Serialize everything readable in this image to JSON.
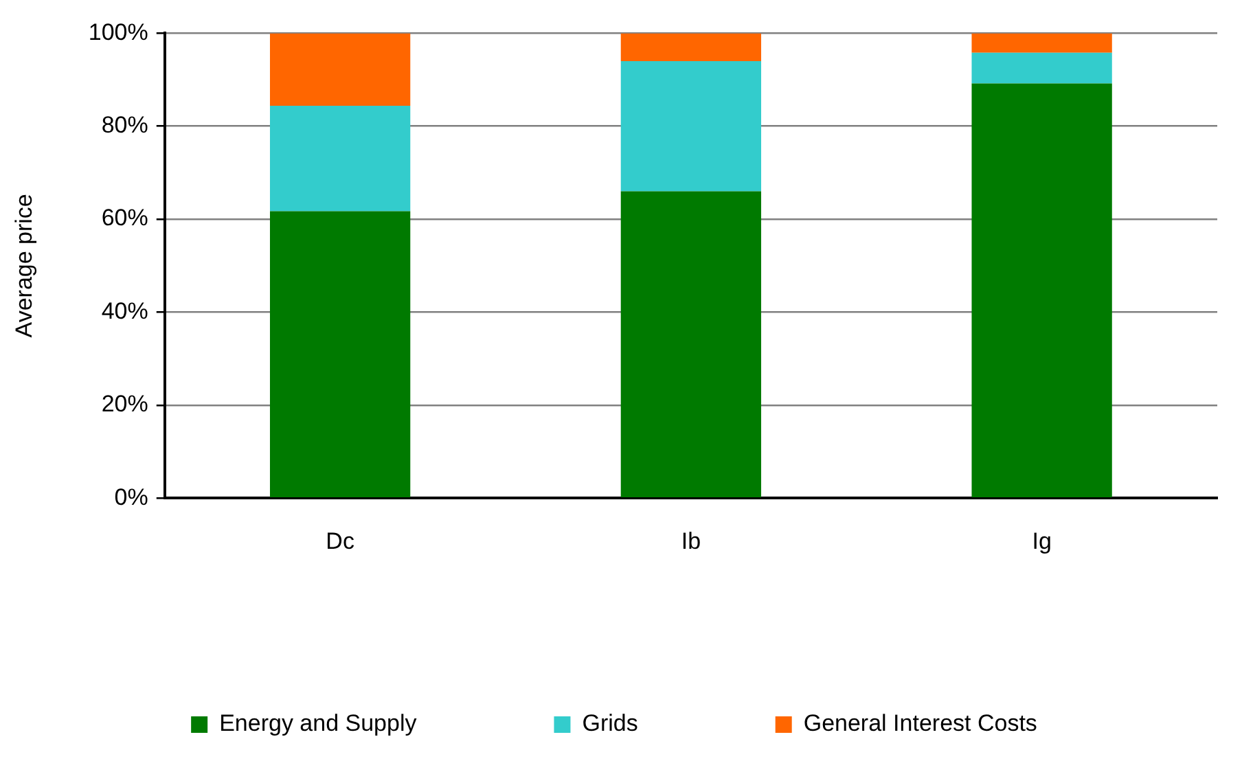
{
  "chart_data": {
    "type": "bar",
    "stacked": true,
    "ylabel": "Average price",
    "categories": [
      "Dc",
      "Ib",
      "Ig"
    ],
    "series": [
      {
        "name": "Energy and Supply",
        "color": "#007a00",
        "values": [
          61.7,
          66,
          89.2
        ]
      },
      {
        "name": "Grids",
        "color": "#33cccc",
        "values": [
          22.7,
          28,
          6.6
        ]
      },
      {
        "name": "General Interest Costs",
        "color": "#ff6600",
        "values": [
          15.6,
          6,
          4.2
        ]
      }
    ],
    "ylim": [
      0,
      100
    ],
    "yticks": [
      {
        "value": 0,
        "label": "0%"
      },
      {
        "value": 20,
        "label": "20%"
      },
      {
        "value": 40,
        "label": "40%"
      },
      {
        "value": 60,
        "label": "60%"
      },
      {
        "value": 80,
        "label": "80%"
      },
      {
        "value": 100,
        "label": "100%"
      }
    ],
    "grid": "y",
    "legend": "bottom"
  }
}
